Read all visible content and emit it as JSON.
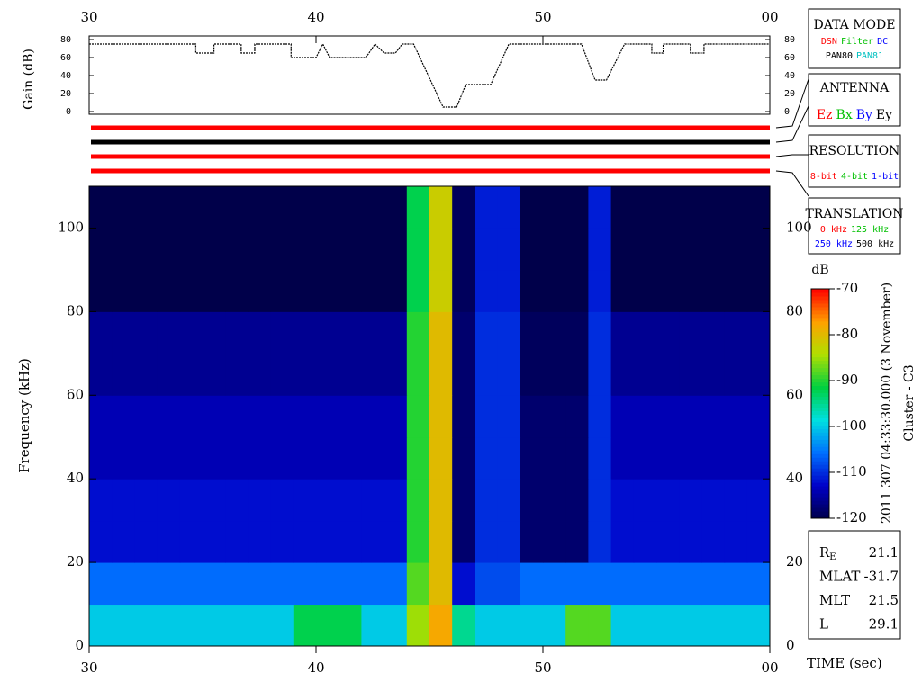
{
  "chart_data": [
    {
      "type": "line",
      "ylabel": "Gain (dB)",
      "color": "#000000",
      "xlim": [
        30,
        60
      ],
      "xticks": [
        30,
        40,
        50,
        {
          "value": 60,
          "label": "00"
        }
      ],
      "ylim": [
        0,
        80
      ],
      "yticks": [
        0,
        20,
        40,
        60,
        80
      ],
      "x": [
        30,
        34.7,
        34.7,
        35.5,
        35.5,
        36.7,
        36.7,
        37.3,
        37.3,
        38.9,
        38.9,
        40,
        40.3,
        40.6,
        42.2,
        42.6,
        43,
        43.5,
        43.8,
        44.3,
        45.6,
        46.2,
        46.6,
        47.7,
        48.5,
        51.7,
        52.3,
        52.8,
        53.6,
        54.8,
        54.8,
        55.3,
        55.3,
        56.5,
        56.5,
        57.1,
        57.1,
        60
      ],
      "values": [
        75,
        75,
        65,
        65,
        75,
        75,
        65,
        65,
        75,
        75,
        60,
        60,
        75,
        60,
        60,
        75,
        65,
        65,
        75,
        75,
        5,
        5,
        30,
        30,
        75,
        75,
        35,
        35,
        75,
        75,
        65,
        65,
        75,
        75,
        65,
        65,
        75,
        75
      ]
    },
    {
      "type": "heatmap",
      "ylabel": "Frequency (kHz)",
      "xlabel": "TIME (sec)",
      "xlim": [
        30,
        60
      ],
      "xticks": [
        30,
        40,
        50,
        {
          "value": 60,
          "label": "00"
        }
      ],
      "ylim": [
        0,
        110
      ],
      "yticks": [
        0,
        20,
        40,
        60,
        80,
        100
      ],
      "bins": [
        30,
        31,
        32,
        33,
        34,
        35,
        36,
        37,
        38,
        39,
        40,
        41,
        42,
        43,
        44,
        45,
        46,
        47,
        48,
        49,
        50,
        51,
        52,
        53,
        54,
        55,
        56,
        57,
        58,
        59,
        60
      ],
      "ybins": [
        0,
        10,
        20,
        30,
        40,
        50,
        60,
        70,
        80,
        90,
        100,
        110
      ],
      "zlabel": "dB",
      "zlim": [
        -120,
        -70
      ],
      "zticks": [
        -120,
        -110,
        -100,
        -90,
        -80,
        -70
      ],
      "colormap": [
        "#00004a",
        "#0000c8",
        "#0070ff",
        "#00e0e0",
        "#00d040",
        "#b0e000",
        "#ffa000",
        "#ff0000"
      ],
      "values": [
        [
          -100,
          -100,
          -100,
          -100,
          -100,
          -100,
          -100,
          -100,
          -100,
          -92,
          -92,
          -92,
          -100,
          -100,
          -85,
          -78,
          -95,
          -100,
          -100,
          -100,
          -100,
          -88,
          -88,
          -100,
          -100,
          -100,
          -100,
          -100,
          -100,
          -100
        ],
        [
          -106,
          -106,
          -106,
          -106,
          -106,
          -106,
          -106,
          -106,
          -106,
          -106,
          -106,
          -106,
          -106,
          -106,
          -88,
          -80,
          -112,
          -108,
          -108,
          -106,
          -106,
          -106,
          -106,
          -106,
          -106,
          -106,
          -106,
          -106,
          -106,
          -106
        ],
        [
          -112,
          -112,
          -112,
          -112,
          -112,
          -112,
          -112,
          -112,
          -112,
          -112,
          -112,
          -112,
          -112,
          -112,
          -90,
          -80,
          -118,
          -110,
          -110,
          -118,
          -118,
          -118,
          -110,
          -112,
          -112,
          -112,
          -112,
          -112,
          -112,
          -112
        ],
        [
          -112,
          -112,
          -112,
          -112,
          -112,
          -112,
          -112,
          -112,
          -112,
          -112,
          -112,
          -112,
          -112,
          -112,
          -90,
          -80,
          -118,
          -110,
          -110,
          -118,
          -118,
          -118,
          -110,
          -112,
          -112,
          -112,
          -112,
          -112,
          -112,
          -112
        ],
        [
          -114,
          -114,
          -114,
          -114,
          -114,
          -114,
          -114,
          -114,
          -114,
          -114,
          -114,
          -114,
          -114,
          -114,
          -90,
          -80,
          -118,
          -110,
          -110,
          -118,
          -118,
          -118,
          -110,
          -114,
          -114,
          -114,
          -114,
          -114,
          -114,
          -114
        ],
        [
          -114,
          -114,
          -114,
          -114,
          -114,
          -114,
          -114,
          -114,
          -114,
          -114,
          -114,
          -114,
          -114,
          -114,
          -90,
          -80,
          -118,
          -110,
          -110,
          -118,
          -118,
          -118,
          -110,
          -114,
          -114,
          -114,
          -114,
          -114,
          -114,
          -114
        ],
        [
          -116,
          -116,
          -116,
          -116,
          -116,
          -116,
          -116,
          -116,
          -116,
          -116,
          -116,
          -116,
          -116,
          -116,
          -90,
          -80,
          -118,
          -110,
          -110,
          -119,
          -119,
          -119,
          -110,
          -116,
          -116,
          -116,
          -116,
          -116,
          -116,
          -116
        ],
        [
          -116,
          -116,
          -116,
          -116,
          -116,
          -116,
          -116,
          -116,
          -116,
          -116,
          -116,
          -116,
          -116,
          -116,
          -90,
          -80,
          -118,
          -110,
          -110,
          -119,
          -119,
          -119,
          -110,
          -116,
          -116,
          -116,
          -116,
          -116,
          -116,
          -116
        ],
        [
          -120,
          -120,
          -120,
          -120,
          -120,
          -120,
          -120,
          -120,
          -120,
          -120,
          -120,
          -120,
          -120,
          -120,
          -92,
          -82,
          -119,
          -111,
          -111,
          -120,
          -120,
          -120,
          -111,
          -120,
          -120,
          -120,
          -120,
          -120,
          -120,
          -120
        ],
        [
          -120,
          -120,
          -120,
          -120,
          -120,
          -120,
          -120,
          -120,
          -120,
          -120,
          -120,
          -120,
          -120,
          -120,
          -92,
          -82,
          -119,
          -111,
          -111,
          -120,
          -120,
          -120,
          -111,
          -120,
          -120,
          -120,
          -120,
          -120,
          -120,
          -120
        ],
        [
          -120,
          -120,
          -120,
          -120,
          -120,
          -120,
          -120,
          -120,
          -120,
          -120,
          -120,
          -120,
          -120,
          -120,
          -92,
          -82,
          -119,
          -111,
          -111,
          -120,
          -120,
          -120,
          -111,
          -120,
          -120,
          -120,
          -120,
          -120,
          -120,
          -120
        ]
      ]
    }
  ],
  "date": "2011 307 04:33:30.000 (3 November)",
  "spacecraft": "Cluster - C3",
  "data_mode": {
    "title": "DATA MODE",
    "items": [
      {
        "text": "DSN",
        "color": "#ff0000"
      },
      {
        "text": "Filter",
        "color": "#00c000"
      },
      {
        "text": "DC",
        "color": "#0000ff"
      },
      {
        "text": "PAN80",
        "color": "#000000"
      },
      {
        "text": "PAN81",
        "color": "#00c0c0"
      }
    ]
  },
  "antenna": {
    "title": "ANTENNA",
    "items": [
      {
        "text": "Ez",
        "color": "#ff0000"
      },
      {
        "text": "Bx",
        "color": "#00c000"
      },
      {
        "text": "By",
        "color": "#0000ff"
      },
      {
        "text": "Ey",
        "color": "#000000"
      }
    ]
  },
  "resolution": {
    "title": "RESOLUTION",
    "items": [
      {
        "text": "8-bit",
        "color": "#ff0000"
      },
      {
        "text": "4-bit",
        "color": "#00c000"
      },
      {
        "text": "1-bit",
        "color": "#0000ff"
      }
    ]
  },
  "translation": {
    "title": "TRANSLATION",
    "items": [
      {
        "text": "0 kHz",
        "color": "#ff0000"
      },
      {
        "text": "125 kHz",
        "color": "#00c000"
      },
      {
        "text": "250 kHz",
        "color": "#0000ff"
      },
      {
        "text": "500 kHz",
        "color": "#000000"
      }
    ]
  },
  "info": [
    {
      "label": "R",
      "sub": "E",
      "value": "21.1"
    },
    {
      "label": "MLAT",
      "value": "-31.7"
    },
    {
      "label": "MLT",
      "value": "21.5"
    },
    {
      "label": "L",
      "value": "29.1"
    }
  ]
}
